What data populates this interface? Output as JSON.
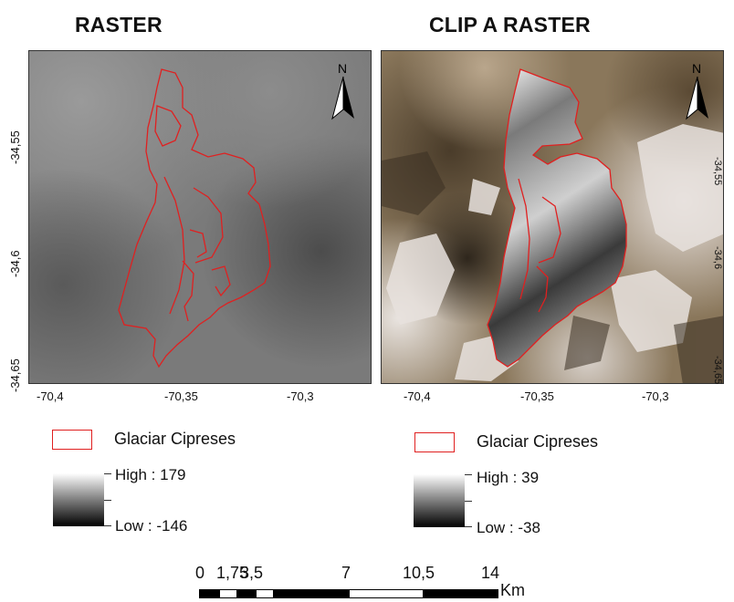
{
  "titles": {
    "left": "RASTER",
    "right": "CLIP A RASTER"
  },
  "north_label": "N",
  "axes": {
    "x_ticks": [
      "-70,4",
      "-70,35",
      "-70,3"
    ],
    "y_ticks": [
      "-34,55",
      "-34,6",
      "-34,65"
    ]
  },
  "legend_left": {
    "outline_label": "Glaciar Cipreses",
    "high_label": "High : 179",
    "low_label": "Low : -146"
  },
  "legend_right": {
    "outline_label": "Glaciar Cipreses",
    "high_label": "High : 39",
    "low_label": "Low : -38"
  },
  "scale_bar": {
    "labels": [
      "0",
      "1,75",
      "3,5",
      "7",
      "10,5",
      "14"
    ],
    "unit": "Km"
  },
  "colors": {
    "outline": "#e02020",
    "frame": "#333333"
  }
}
